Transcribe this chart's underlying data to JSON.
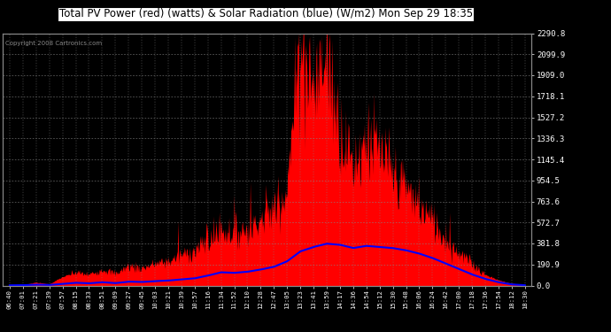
{
  "title": "Total PV Power (red) (watts) & Solar Radiation (blue) (W/m2) Mon Sep 29 18:35",
  "copyright": "Copyright 2008 Cartronics.com",
  "background_color": "#000000",
  "plot_bg_color": "#000000",
  "grid_color": "#666666",
  "title_color": "#ffffff",
  "tick_color": "#ffffff",
  "red_color": "#ff0000",
  "blue_color": "#0000ff",
  "ylim": [
    0.0,
    2290.8
  ],
  "yticks": [
    0.0,
    190.9,
    381.8,
    572.7,
    763.6,
    954.5,
    1145.4,
    1336.3,
    1527.2,
    1718.1,
    1909.0,
    2099.9,
    2290.8
  ],
  "xtick_labels": [
    "06:40",
    "07:01",
    "07:21",
    "07:39",
    "07:57",
    "08:15",
    "08:33",
    "08:51",
    "09:09",
    "09:27",
    "09:45",
    "10:03",
    "10:21",
    "10:39",
    "10:57",
    "11:16",
    "11:34",
    "11:52",
    "12:10",
    "12:28",
    "12:47",
    "13:05",
    "13:23",
    "13:41",
    "13:59",
    "14:17",
    "14:36",
    "14:54",
    "15:12",
    "15:30",
    "15:48",
    "16:06",
    "16:24",
    "16:42",
    "17:00",
    "17:18",
    "17:36",
    "17:54",
    "18:12",
    "18:30"
  ],
  "pv_power": [
    5,
    8,
    30,
    15,
    80,
    120,
    100,
    150,
    110,
    180,
    160,
    200,
    220,
    280,
    320,
    400,
    500,
    480,
    520,
    600,
    700,
    900,
    2290,
    1800,
    2100,
    1400,
    1100,
    1350,
    1200,
    1000,
    900,
    700,
    600,
    400,
    300,
    200,
    100,
    50,
    20,
    5
  ],
  "solar_rad": [
    2,
    3,
    8,
    5,
    15,
    25,
    20,
    30,
    22,
    35,
    32,
    40,
    45,
    55,
    65,
    90,
    120,
    115,
    125,
    145,
    170,
    220,
    310,
    350,
    380,
    370,
    340,
    360,
    350,
    340,
    320,
    290,
    250,
    200,
    150,
    100,
    60,
    30,
    10,
    3
  ],
  "figsize": [
    6.9,
    3.75
  ],
  "dpi": 100
}
